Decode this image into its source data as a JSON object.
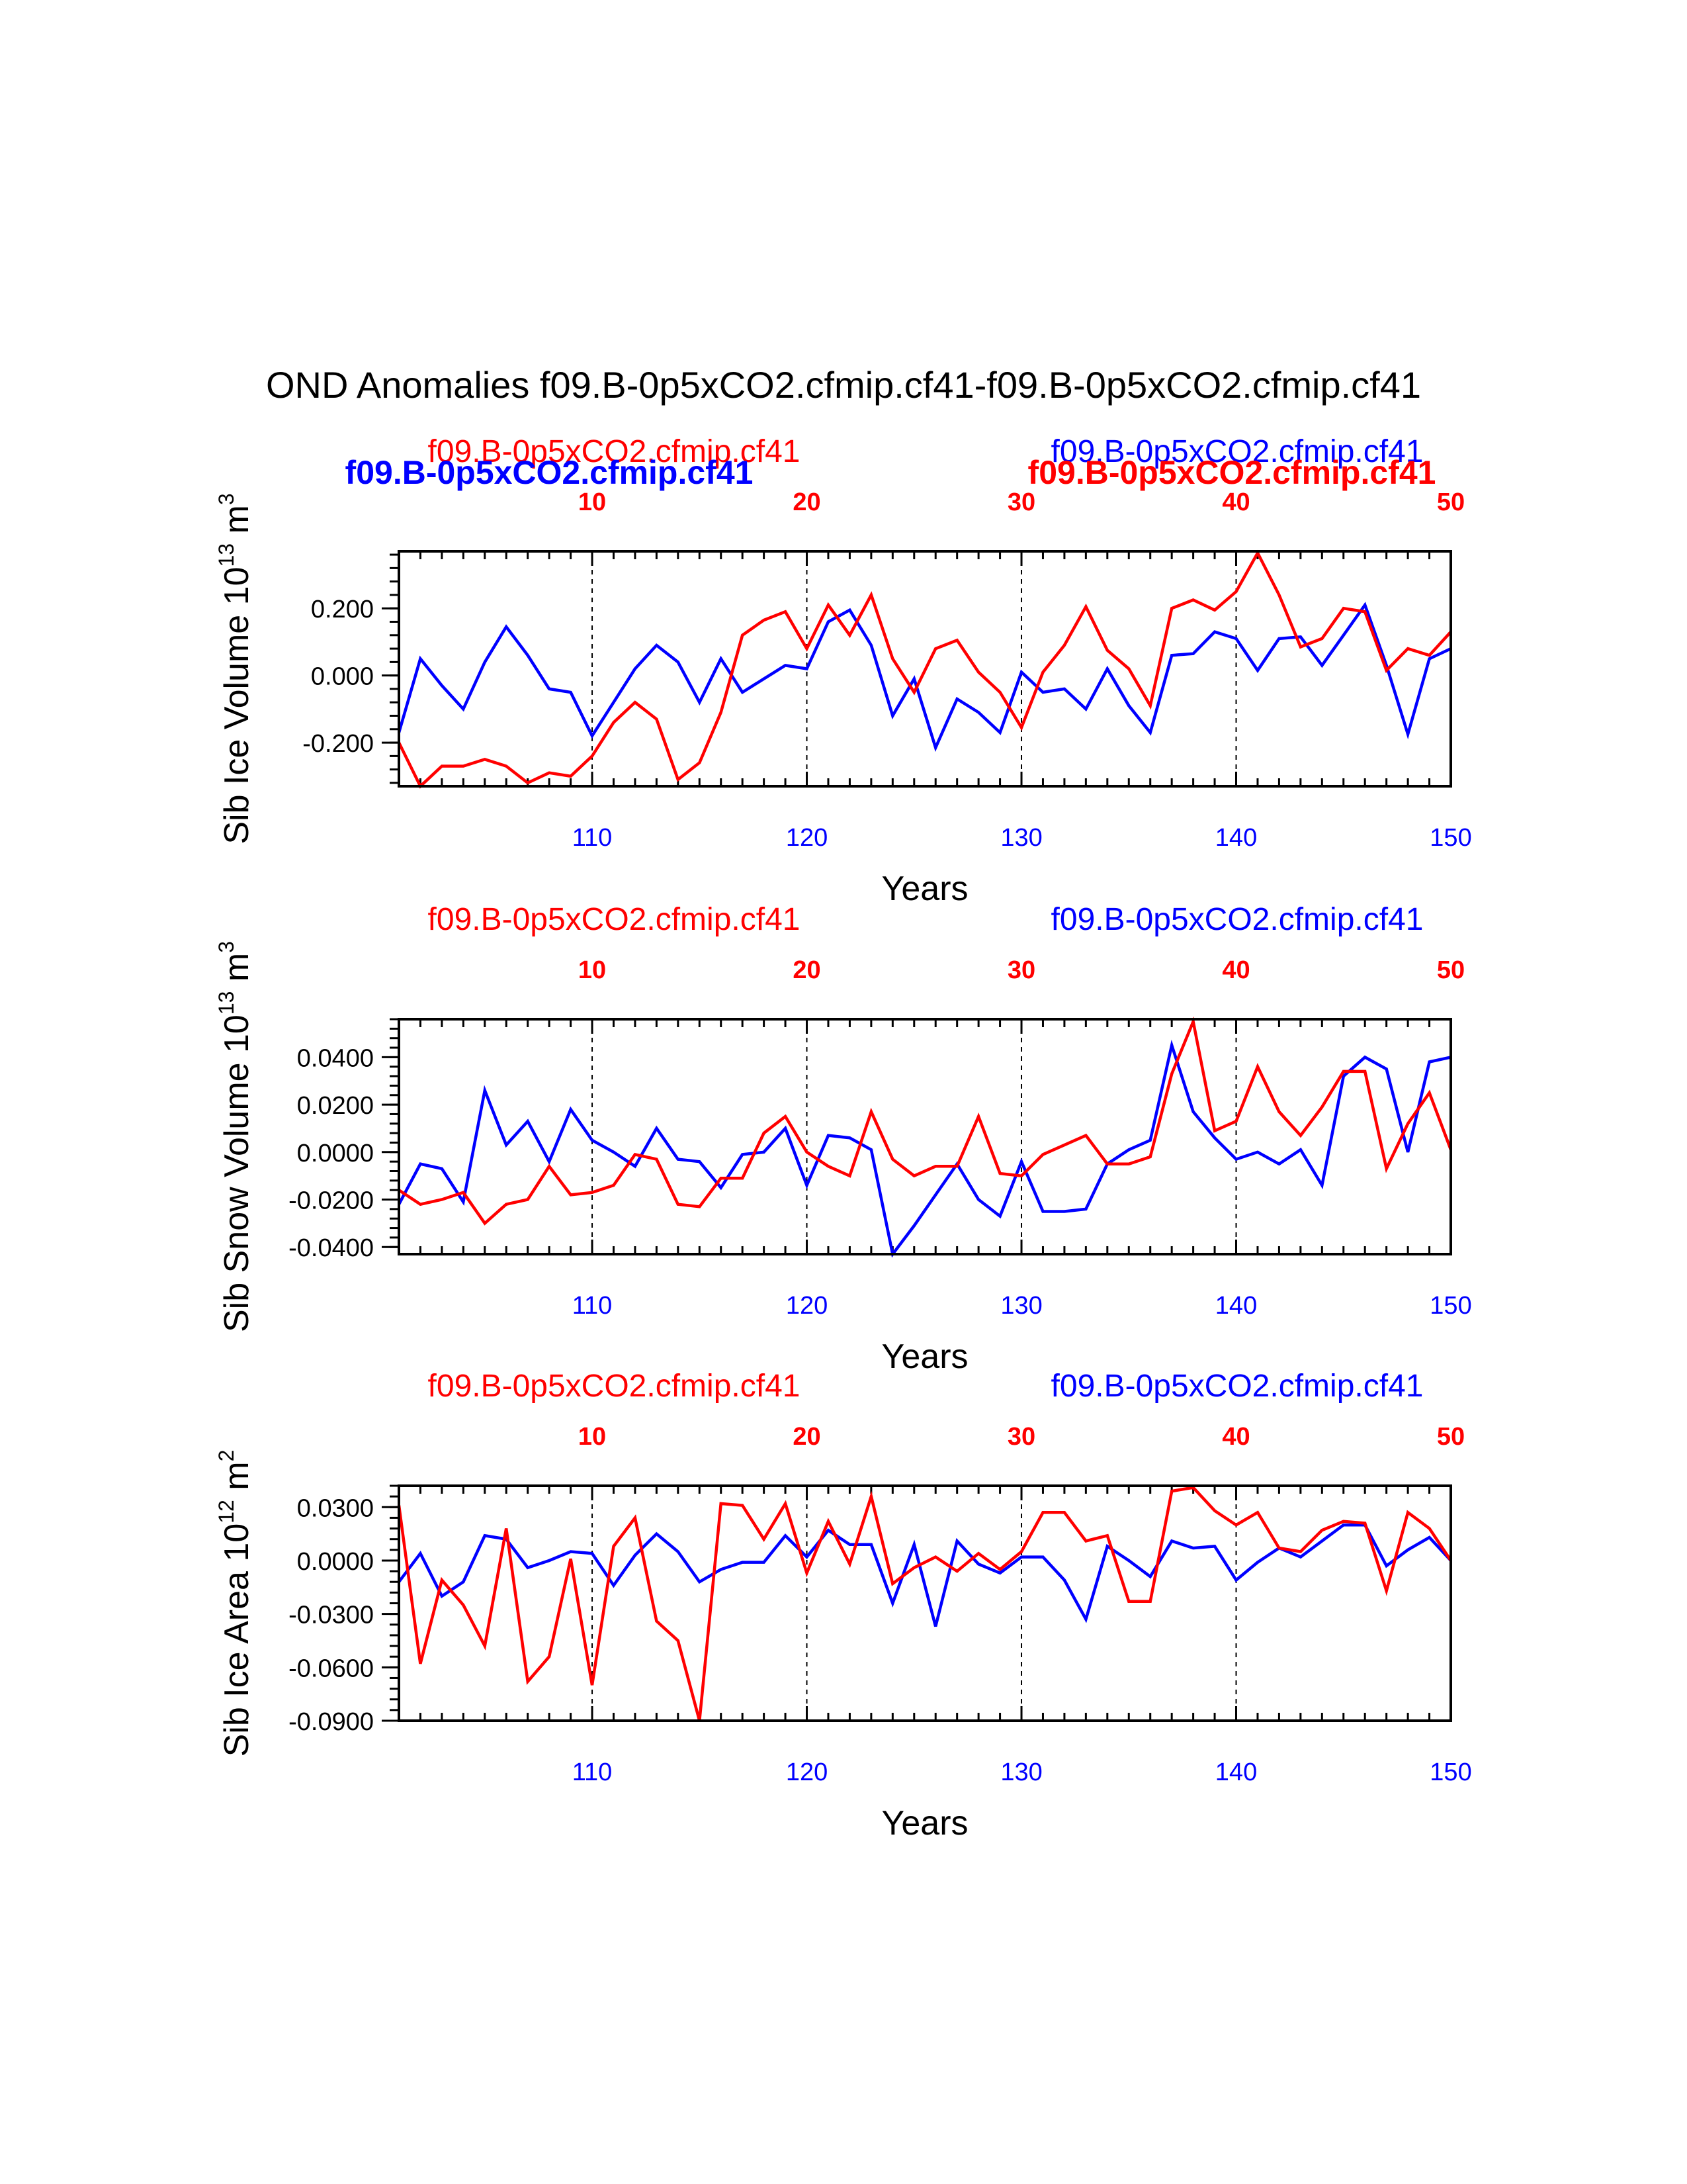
{
  "title": "OND Anomalies f09.B-0p5xCO2.cfmip.cf41-f09.B-0p5xCO2.cfmip.cf41",
  "colors": {
    "red": "#ff0000",
    "blue": "#0000ff",
    "axis": "#000000"
  },
  "legend": {
    "red_label": "f09.B-0p5xCO2.cfmip.cf41",
    "blue_label": "f09.B-0p5xCO2.cfmip.cf41",
    "bold_blue_label": "f09.B-0p5xCO2.cfmip.cf41",
    "bold_red_label": "f09.B-0p5xCO2.cfmip.cf41"
  },
  "chart_data": [
    {
      "type": "line",
      "id": "ice-volume",
      "ylabel": "Sib Ice Volume 10",
      "ylabel_exp": "13",
      "ylabel_unit": " m",
      "ylabel_unit_exp": "3",
      "xlabel": "Years",
      "xlim": [
        101,
        150
      ],
      "ylim": [
        -0.33,
        0.37
      ],
      "yticks": [
        -0.2,
        0.0,
        0.2
      ],
      "ytick_labels": [
        "-0.200",
        "0.000",
        "0.200"
      ],
      "xticks": [
        110,
        120,
        130,
        140,
        150
      ],
      "xtick_labels": [
        "110",
        "120",
        "130",
        "140",
        "150"
      ],
      "top_ticks": [
        10,
        20,
        30,
        40,
        50
      ],
      "top_tick_labels": [
        "10",
        "20",
        "30",
        "40",
        "50"
      ],
      "series": [
        {
          "name": "f09.B-0p5xCO2.cfmip.cf41",
          "color": "#0000ff",
          "x": [
            101,
            102,
            103,
            104,
            105,
            106,
            107,
            108,
            109,
            110,
            111,
            112,
            113,
            114,
            115,
            116,
            117,
            118,
            119,
            120,
            121,
            122,
            123,
            124,
            125,
            126,
            127,
            128,
            129,
            130,
            131,
            132,
            133,
            134,
            135,
            136,
            137,
            138,
            139,
            140,
            141,
            142,
            143,
            144,
            145,
            146,
            147,
            148,
            149,
            150
          ],
          "values": [
            -0.17,
            0.05,
            -0.03,
            -0.1,
            0.04,
            0.145,
            0.06,
            -0.04,
            -0.05,
            -0.18,
            -0.08,
            0.02,
            0.09,
            0.04,
            -0.08,
            0.05,
            -0.05,
            -0.01,
            0.03,
            0.02,
            0.16,
            0.195,
            0.09,
            -0.12,
            -0.01,
            -0.215,
            -0.07,
            -0.11,
            -0.17,
            0.01,
            -0.05,
            -0.04,
            -0.1,
            0.02,
            -0.09,
            -0.17,
            0.06,
            0.065,
            0.13,
            0.11,
            0.015,
            0.11,
            0.115,
            0.03,
            0.12,
            0.21,
            0.03,
            -0.175,
            0.05,
            0.08
          ]
        },
        {
          "name": "f09.B-0p5xCO2.cfmip.cf41",
          "color": "#ff0000",
          "x": [
            101,
            102,
            103,
            104,
            105,
            106,
            107,
            108,
            109,
            110,
            111,
            112,
            113,
            114,
            115,
            116,
            117,
            118,
            119,
            120,
            121,
            122,
            123,
            124,
            125,
            126,
            127,
            128,
            129,
            130,
            131,
            132,
            133,
            134,
            135,
            136,
            137,
            138,
            139,
            140,
            141,
            142,
            143,
            144,
            145,
            146,
            147,
            148,
            149,
            150
          ],
          "values": [
            -0.2,
            -0.33,
            -0.27,
            -0.27,
            -0.25,
            -0.27,
            -0.32,
            -0.29,
            -0.3,
            -0.24,
            -0.14,
            -0.08,
            -0.13,
            -0.31,
            -0.26,
            -0.11,
            0.12,
            0.165,
            0.19,
            0.08,
            0.21,
            0.12,
            0.24,
            0.05,
            -0.05,
            0.08,
            0.105,
            0.01,
            -0.05,
            -0.155,
            0.01,
            0.09,
            0.205,
            0.075,
            0.02,
            -0.09,
            0.2,
            0.225,
            0.195,
            0.25,
            0.365,
            0.24,
            0.085,
            0.11,
            0.2,
            0.19,
            0.015,
            0.08,
            0.06,
            0.13
          ]
        }
      ]
    },
    {
      "type": "line",
      "id": "snow-volume",
      "ylabel": "Sib Snow Volume 10",
      "ylabel_exp": "13",
      "ylabel_unit": " m",
      "ylabel_unit_exp": "3",
      "xlabel": "Years",
      "xlim": [
        101,
        150
      ],
      "ylim": [
        -0.043,
        0.056
      ],
      "yticks": [
        -0.04,
        -0.02,
        0.0,
        0.02,
        0.04
      ],
      "ytick_labels": [
        "-0.0400",
        "-0.0200",
        "0.0000",
        "0.0200",
        "0.0400"
      ],
      "xticks": [
        110,
        120,
        130,
        140,
        150
      ],
      "xtick_labels": [
        "110",
        "120",
        "130",
        "140",
        "150"
      ],
      "top_ticks": [
        10,
        20,
        30,
        40,
        50
      ],
      "top_tick_labels": [
        "10",
        "20",
        "30",
        "40",
        "50"
      ],
      "series": [
        {
          "name": "f09.B-0p5xCO2.cfmip.cf41",
          "color": "#0000ff",
          "x": [
            101,
            102,
            103,
            104,
            105,
            106,
            107,
            108,
            109,
            110,
            111,
            112,
            113,
            114,
            115,
            116,
            117,
            118,
            119,
            120,
            121,
            122,
            123,
            124,
            125,
            126,
            127,
            128,
            129,
            130,
            131,
            132,
            133,
            134,
            135,
            136,
            137,
            138,
            139,
            140,
            141,
            142,
            143,
            144,
            145,
            146,
            147,
            148,
            149,
            150
          ],
          "values": [
            -0.022,
            -0.005,
            -0.007,
            -0.021,
            0.026,
            0.003,
            0.013,
            -0.004,
            0.018,
            0.005,
            0.0,
            -0.006,
            0.01,
            -0.003,
            -0.004,
            -0.015,
            -0.001,
            0.0,
            0.01,
            -0.014,
            0.007,
            0.006,
            0.001,
            -0.043,
            -0.031,
            -0.018,
            -0.005,
            -0.02,
            -0.027,
            -0.004,
            -0.025,
            -0.025,
            -0.024,
            -0.005,
            0.001,
            0.005,
            0.045,
            0.017,
            0.006,
            -0.003,
            0.0,
            -0.005,
            0.001,
            -0.014,
            0.032,
            0.04,
            0.035,
            0.0,
            0.038,
            0.04
          ]
        },
        {
          "name": "f09.B-0p5xCO2.cfmip.cf41",
          "color": "#ff0000",
          "x": [
            101,
            102,
            103,
            104,
            105,
            106,
            107,
            108,
            109,
            110,
            111,
            112,
            113,
            114,
            115,
            116,
            117,
            118,
            119,
            120,
            121,
            122,
            123,
            124,
            125,
            126,
            127,
            128,
            129,
            130,
            131,
            132,
            133,
            134,
            135,
            136,
            137,
            138,
            139,
            140,
            141,
            142,
            143,
            144,
            145,
            146,
            147,
            148,
            149,
            150
          ],
          "values": [
            -0.016,
            -0.022,
            -0.02,
            -0.017,
            -0.03,
            -0.022,
            -0.02,
            -0.006,
            -0.018,
            -0.017,
            -0.014,
            -0.001,
            -0.003,
            -0.022,
            -0.023,
            -0.011,
            -0.011,
            0.008,
            0.015,
            0.0,
            -0.006,
            -0.01,
            0.017,
            -0.003,
            -0.01,
            -0.006,
            -0.006,
            0.015,
            -0.009,
            -0.01,
            -0.001,
            0.003,
            0.007,
            -0.005,
            -0.005,
            -0.002,
            0.033,
            0.055,
            0.009,
            0.013,
            0.036,
            0.017,
            0.007,
            0.019,
            0.034,
            0.034,
            -0.007,
            0.012,
            0.025,
            0.001
          ]
        }
      ]
    },
    {
      "type": "line",
      "id": "ice-area",
      "ylabel": "Sib Ice Area 10",
      "ylabel_exp": "12",
      "ylabel_unit": " m",
      "ylabel_unit_exp": "2",
      "xlabel": "Years",
      "xlim": [
        101,
        150
      ],
      "ylim": [
        -0.09,
        0.042
      ],
      "yticks": [
        -0.09,
        -0.06,
        -0.03,
        0.0,
        0.03
      ],
      "ytick_labels": [
        "-0.0900",
        "-0.0600",
        "-0.0300",
        "0.0000",
        "0.0300"
      ],
      "xticks": [
        110,
        120,
        130,
        140,
        150
      ],
      "xtick_labels": [
        "110",
        "120",
        "130",
        "140",
        "150"
      ],
      "top_ticks": [
        10,
        20,
        30,
        40,
        50
      ],
      "top_tick_labels": [
        "10",
        "20",
        "30",
        "40",
        "50"
      ],
      "series": [
        {
          "name": "f09.B-0p5xCO2.cfmip.cf41",
          "color": "#0000ff",
          "x": [
            101,
            102,
            103,
            104,
            105,
            106,
            107,
            108,
            109,
            110,
            111,
            112,
            113,
            114,
            115,
            116,
            117,
            118,
            119,
            120,
            121,
            122,
            123,
            124,
            125,
            126,
            127,
            128,
            129,
            130,
            131,
            132,
            133,
            134,
            135,
            136,
            137,
            138,
            139,
            140,
            141,
            142,
            143,
            144,
            145,
            146,
            147,
            148,
            149,
            150
          ],
          "values": [
            -0.012,
            0.004,
            -0.02,
            -0.012,
            0.014,
            0.012,
            -0.004,
            0.0,
            0.005,
            0.004,
            -0.014,
            0.003,
            0.015,
            0.005,
            -0.012,
            -0.005,
            -0.001,
            -0.001,
            0.014,
            0.002,
            0.017,
            0.009,
            0.009,
            -0.024,
            0.009,
            -0.037,
            0.011,
            -0.002,
            -0.007,
            0.002,
            0.002,
            -0.011,
            -0.033,
            0.008,
            0.0,
            -0.009,
            0.011,
            0.007,
            0.008,
            -0.011,
            -0.001,
            0.007,
            0.002,
            0.011,
            0.02,
            0.02,
            -0.003,
            0.006,
            0.013,
            0.0
          ]
        },
        {
          "name": "f09.B-0p5xCO2.cfmip.cf41",
          "color": "#ff0000",
          "x": [
            101,
            102,
            103,
            104,
            105,
            106,
            107,
            108,
            109,
            110,
            111,
            112,
            113,
            114,
            115,
            116,
            117,
            118,
            119,
            120,
            121,
            122,
            123,
            124,
            125,
            126,
            127,
            128,
            129,
            130,
            131,
            132,
            133,
            134,
            135,
            136,
            137,
            138,
            139,
            140,
            141,
            142,
            143,
            144,
            145,
            146,
            147,
            148,
            149,
            150
          ],
          "values": [
            0.031,
            -0.058,
            -0.011,
            -0.025,
            -0.048,
            0.018,
            -0.068,
            -0.054,
            0.001,
            -0.07,
            0.008,
            0.024,
            -0.034,
            -0.045,
            -0.09,
            0.032,
            0.031,
            0.012,
            0.032,
            -0.007,
            0.022,
            -0.002,
            0.036,
            -0.013,
            -0.004,
            0.002,
            -0.006,
            0.004,
            -0.005,
            0.005,
            0.027,
            0.027,
            0.011,
            0.014,
            -0.023,
            -0.023,
            0.039,
            0.041,
            0.028,
            0.02,
            0.027,
            0.007,
            0.005,
            0.017,
            0.022,
            0.021,
            -0.017,
            0.027,
            0.018,
            0.0
          ]
        }
      ]
    }
  ]
}
